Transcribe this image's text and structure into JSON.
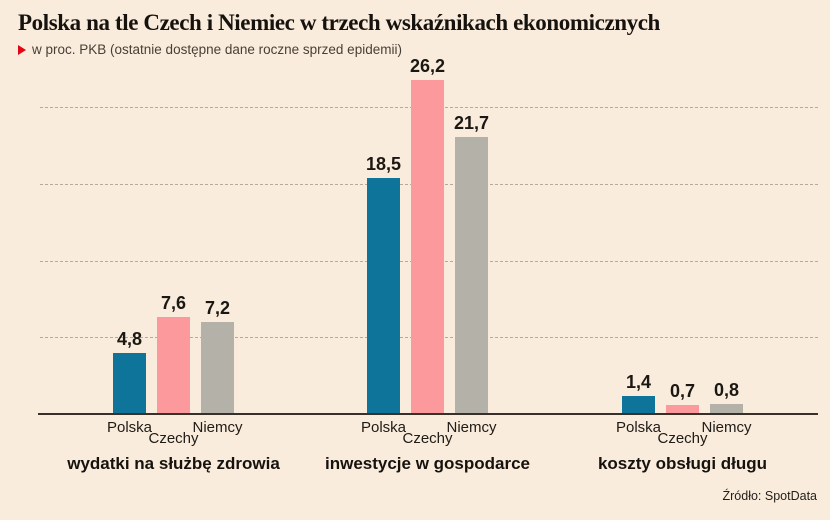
{
  "header": {
    "title": "Polska na tle Czech i Niemiec w trzech wskaźnikach ekonomicznych",
    "subtitle": "w proc. PKB (ostatnie dostępne dane roczne sprzed epidemii)"
  },
  "footer": {
    "source": "Źródło: SpotData"
  },
  "colors": {
    "background": "#faecdc",
    "series": [
      "#0f7499",
      "#fb999c",
      "#b4b2a8"
    ],
    "marker_red": "#e00613",
    "axis": "#37312a",
    "gridline": "#b7a999",
    "text": "#1b1712"
  },
  "chart_data": {
    "type": "bar",
    "title": "Polska na tle Czech i Niemiec w trzech wskaźnikach ekonomicznych",
    "subtitle": "w proc. PKB (ostatnie dostępne dane roczne sprzed epidemii)",
    "unit": "proc. PKB",
    "series_names": [
      "Polska",
      "Czechy",
      "Niemcy"
    ],
    "groups": [
      {
        "caption": "wydatki na służbę zdrowia",
        "values": [
          4.8,
          7.6,
          7.2
        ],
        "labels": [
          "4,8",
          "7,6",
          "7,2"
        ]
      },
      {
        "caption": "inwestycje w gospodarce",
        "values": [
          18.5,
          26.2,
          21.7
        ],
        "labels": [
          "18,5",
          "26,2",
          "21,7"
        ]
      },
      {
        "caption": "koszty obsługi długu",
        "values": [
          1.4,
          0.7,
          0.8
        ],
        "labels": [
          "1,4",
          "0,7",
          "0,8"
        ]
      }
    ],
    "ylim": [
      0,
      28
    ],
    "ylabel": "",
    "xlabel": "",
    "legend": "none",
    "grid": "horizontal dashed, unlabeled",
    "source": "Źródło: SpotData"
  }
}
